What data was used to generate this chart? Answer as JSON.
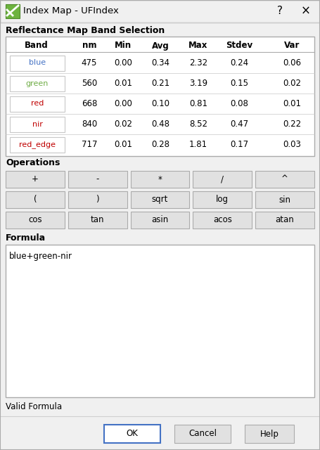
{
  "title": "Index Map - UFIndex",
  "bg_color": "#f0f0f0",
  "section1_title": "Reflectance Map Band Selection",
  "table_headers": [
    "Band",
    "nm",
    "Min",
    "Avg",
    "Max",
    "Stdev",
    "Var"
  ],
  "bands": [
    {
      "name": "blue",
      "color": "#4472c4",
      "nm": "475",
      "min": "0.00",
      "avg": "0.34",
      "max": "2.32",
      "stdev": "0.24",
      "var": "0.06"
    },
    {
      "name": "green",
      "color": "#70ad47",
      "nm": "560",
      "min": "0.01",
      "avg": "0.21",
      "max": "3.19",
      "stdev": "0.15",
      "var": "0.02"
    },
    {
      "name": "red",
      "color": "#c00000",
      "nm": "668",
      "min": "0.00",
      "avg": "0.10",
      "max": "0.81",
      "stdev": "0.08",
      "var": "0.01"
    },
    {
      "name": "nir",
      "color": "#c00000",
      "nm": "840",
      "min": "0.02",
      "avg": "0.48",
      "max": "8.52",
      "stdev": "0.47",
      "var": "0.22"
    },
    {
      "name": "red_edge",
      "color": "#c00000",
      "nm": "717",
      "min": "0.01",
      "avg": "0.28",
      "max": "1.81",
      "stdev": "0.17",
      "var": "0.03"
    }
  ],
  "section2_title": "Operations",
  "op_buttons_row1": [
    "+",
    "-",
    "*",
    "/",
    "^"
  ],
  "op_buttons_row2": [
    "(",
    ")",
    "sqrt",
    "log",
    "sin"
  ],
  "op_buttons_row3": [
    "cos",
    "tan",
    "asin",
    "acos",
    "atan"
  ],
  "section3_title": "Formula",
  "formula_text": "blue+green-nir",
  "footer_text": "Valid Formula",
  "button_ok": "OK",
  "button_cancel": "Cancel",
  "button_help": "Help",
  "white": "#ffffff",
  "border_color": "#ababab",
  "button_bg": "#e1e1e1",
  "button_border": "#ababab",
  "text_color": "#000000",
  "ok_border_color": "#4472c4",
  "table_border_color": "#c8c8c8",
  "band_btn_border": "#c8c8c8",
  "icon_green": "#6db33f",
  "icon_dark_green": "#4e8a2a",
  "title_bar_separator": "#d0d0d0"
}
